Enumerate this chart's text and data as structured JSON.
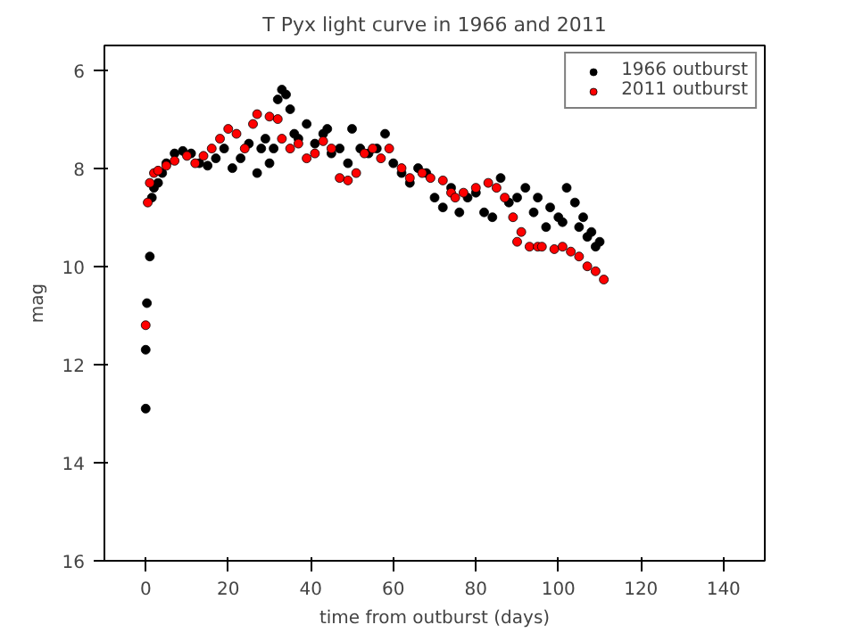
{
  "chart_data": {
    "type": "scatter",
    "title": "T Pyx light curve in 1966 and 2011",
    "xlabel": "time from outburst (days)",
    "ylabel": "mag",
    "xlim": [
      -10,
      150
    ],
    "xticks": [
      0,
      20,
      40,
      60,
      80,
      100,
      120,
      140
    ],
    "ylim": [
      16,
      5.5
    ],
    "yticks": [
      6,
      8,
      10,
      12,
      14,
      16
    ],
    "grid": false,
    "legend": "top right",
    "marker": "circle",
    "series": [
      {
        "name": "1966 outburst",
        "color": "#000000",
        "x": [
          0,
          0,
          0.3,
          1,
          1.5,
          2,
          3,
          4,
          5,
          7,
          9,
          11,
          13,
          15,
          17,
          19,
          21,
          23,
          25,
          27,
          28,
          29,
          30,
          31,
          32,
          33,
          34,
          35,
          36,
          37,
          39,
          41,
          43,
          44,
          45,
          47,
          49,
          50,
          52,
          54,
          56,
          58,
          60,
          62,
          64,
          66,
          68,
          70,
          72,
          74,
          76,
          78,
          80,
          82,
          84,
          86,
          88,
          90,
          92,
          94,
          95,
          97,
          98,
          100,
          101,
          102,
          104,
          105,
          106,
          107,
          108,
          109,
          110
        ],
        "values": [
          12.9,
          11.7,
          10.75,
          9.8,
          8.6,
          8.4,
          8.3,
          8.1,
          7.9,
          7.7,
          7.65,
          7.7,
          7.9,
          7.95,
          7.8,
          7.6,
          8.0,
          7.8,
          7.5,
          8.1,
          7.6,
          7.4,
          7.9,
          7.6,
          6.6,
          6.4,
          6.5,
          6.8,
          7.3,
          7.4,
          7.1,
          7.5,
          7.3,
          7.2,
          7.7,
          7.6,
          7.9,
          7.2,
          7.6,
          7.7,
          7.6,
          7.3,
          7.9,
          8.1,
          8.3,
          8.0,
          8.1,
          8.6,
          8.8,
          8.4,
          8.9,
          8.6,
          8.5,
          8.9,
          9.0,
          8.2,
          8.7,
          8.6,
          8.4,
          8.9,
          8.6,
          9.2,
          8.8,
          9.0,
          9.1,
          8.4,
          8.7,
          9.2,
          9.0,
          9.4,
          9.3,
          9.6,
          9.5
        ]
      },
      {
        "name": "2011 outburst",
        "color": "#ff0000",
        "x": [
          0,
          0.5,
          1,
          2,
          3,
          5,
          7,
          10,
          12,
          14,
          16,
          18,
          20,
          22,
          24,
          26,
          27,
          30,
          32,
          33,
          35,
          37,
          39,
          41,
          43,
          45,
          47,
          49,
          51,
          53,
          55,
          57,
          59,
          62,
          64,
          67,
          69,
          72,
          74,
          75,
          77,
          80,
          83,
          85,
          87,
          89,
          90,
          91,
          93,
          95,
          96,
          99,
          101,
          103,
          105,
          107,
          109,
          111
        ],
        "values": [
          11.2,
          8.7,
          8.3,
          8.1,
          8.05,
          7.95,
          7.85,
          7.75,
          7.9,
          7.75,
          7.6,
          7.4,
          7.2,
          7.3,
          7.6,
          7.1,
          6.9,
          6.95,
          7.0,
          7.4,
          7.6,
          7.5,
          7.8,
          7.7,
          7.45,
          7.6,
          8.2,
          8.25,
          8.1,
          7.7,
          7.6,
          7.8,
          7.6,
          8.0,
          8.2,
          8.1,
          8.2,
          8.25,
          8.5,
          8.6,
          8.5,
          8.4,
          8.3,
          8.4,
          8.6,
          9.0,
          9.5,
          9.3,
          9.6,
          9.6,
          9.6,
          9.65,
          9.6,
          9.7,
          9.8,
          10.0,
          10.1,
          10.27
        ]
      }
    ]
  }
}
